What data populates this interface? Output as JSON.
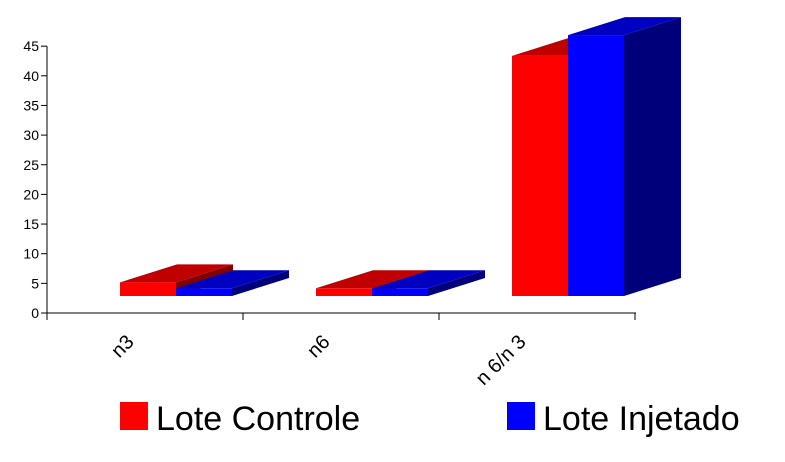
{
  "chart_data": {
    "type": "bar",
    "style": "3d-clustered-column",
    "categories": [
      "n3",
      "n6",
      "n 6/n 3"
    ],
    "series": [
      {
        "name": "Lote Controle",
        "values": [
          2.3,
          1.3,
          40.5
        ],
        "color": "#ff0000",
        "top_color": "#c00000",
        "side_color": "#800000"
      },
      {
        "name": "Lote Injetado",
        "values": [
          1.3,
          1.3,
          44.0
        ],
        "color": "#0000ff",
        "top_color": "#0000c0",
        "side_color": "#00007a"
      }
    ],
    "y_ticks": [
      "0",
      "5",
      "10",
      "15",
      "20",
      "25",
      "30",
      "35",
      "40",
      "45"
    ],
    "ylim": [
      0,
      45
    ],
    "grid": false,
    "legend_position": "bottom"
  }
}
